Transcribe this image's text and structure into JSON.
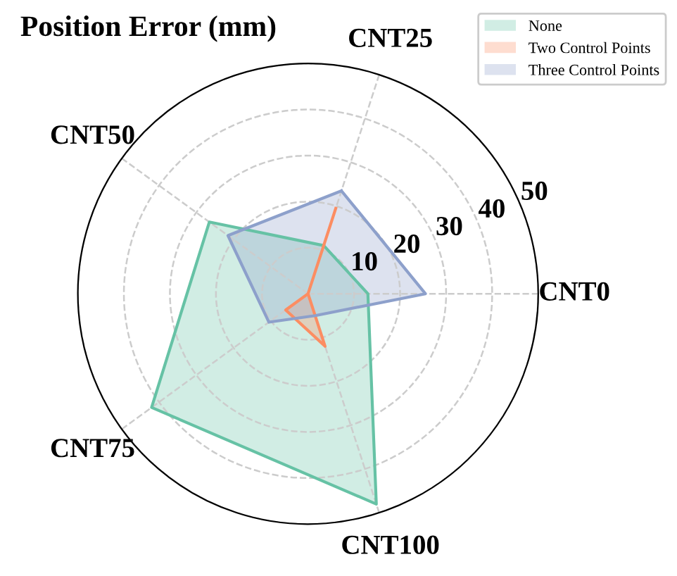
{
  "chart_data": {
    "type": "radar",
    "title": "Position Error (mm)",
    "categories": [
      "CNT25",
      "CNT0",
      "CNT100",
      "CNT75",
      "CNT50"
    ],
    "series": [
      {
        "name": "None",
        "color": "#66c2a5",
        "values": [
          11,
          13,
          48,
          42,
          26.5
        ]
      },
      {
        "name": "Two Control Points",
        "color": "#fc8d62",
        "values": [
          19.5,
          0,
          12,
          6,
          0
        ]
      },
      {
        "name": "Three Control Points",
        "color": "#8da0cb",
        "values": [
          23.5,
          25.5,
          5,
          10.5,
          21.5
        ]
      }
    ],
    "ylim": [
      0,
      50
    ],
    "yticks": [
      10,
      20,
      30,
      40,
      50
    ],
    "grid": true,
    "legend": "top right"
  }
}
